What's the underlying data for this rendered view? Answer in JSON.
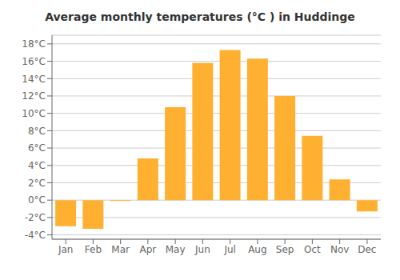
{
  "chart_data": {
    "type": "bar",
    "title": "Average monthly temperatures (°C ) in Huddinge",
    "categories": [
      "Jan",
      "Feb",
      "Mar",
      "Apr",
      "May",
      "Jun",
      "Jul",
      "Aug",
      "Sep",
      "Oct",
      "Nov",
      "Dec"
    ],
    "values": [
      -3.0,
      -3.3,
      -0.1,
      4.8,
      10.7,
      15.8,
      17.3,
      16.3,
      12.0,
      7.4,
      2.4,
      -1.3
    ],
    "color": "#FFB030",
    "ylim": [
      -4.5,
      19
    ],
    "yticks": [
      {
        "value": -4,
        "label": "-4°C"
      },
      {
        "value": -2,
        "label": "-2°C"
      },
      {
        "value": 0,
        "label": "0°C"
      },
      {
        "value": 2,
        "label": "2°C"
      },
      {
        "value": 4,
        "label": "4°C"
      },
      {
        "value": 6,
        "label": "6°C"
      },
      {
        "value": 8,
        "label": "8°C"
      },
      {
        "value": 10,
        "label": "10°C"
      },
      {
        "value": 12,
        "label": "12°C"
      },
      {
        "value": 14,
        "label": "14°C"
      },
      {
        "value": 16,
        "label": "16°C"
      },
      {
        "value": 18,
        "label": "18°C"
      }
    ],
    "grid": true
  }
}
